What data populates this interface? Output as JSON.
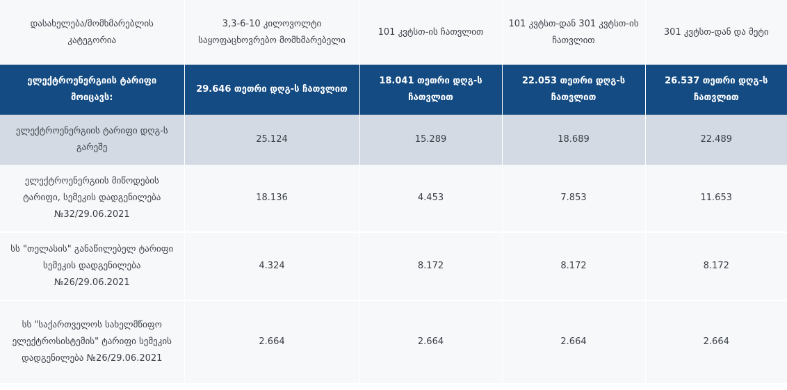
{
  "header": {
    "category_label": "დასახელება/მომხმარებლის კატეგორია",
    "columns": [
      "3,3-6-10 კილოვოლტი საყოფაცხოვრებო მომხმარებელი",
      "101 კვტსთ-ის ჩათვლით",
      "101 კვტსთ-დან 301 კვტსთ-ის ჩათვლით",
      "301 კვტსთ-დან და მეტი"
    ]
  },
  "tariff_row": {
    "label": "ელექტროენერგიის ტარიფი მოიცავს:",
    "values": [
      "29.646 თეთრი დღგ-ს ჩათვლით",
      "18.041 თეთრი დღგ-ს ჩათვლით",
      "22.053 თეთრი დღგ-ს ჩათვლით",
      "26.537 თეთრი დღგ-ს ჩათვლით"
    ]
  },
  "rows": [
    {
      "label": "ელექტროენერგიის ტარიფი დღგ-ს გარეშე",
      "values": [
        "25.124",
        "15.289",
        "18.689",
        "22.489"
      ]
    },
    {
      "label": "ელექტროენერგიის მიწოდების ტარიფი,  სემეკის დადგენილება №32/29.06.2021",
      "values": [
        "18.136",
        "4.453",
        "7.853",
        "11.653"
      ]
    },
    {
      "label": "სს \"თელასის\" განაწილებელ ტარიფი სემეკის დადგენილება №26/29.06.2021",
      "values": [
        "4.324",
        "8.172",
        "8.172",
        "8.172"
      ]
    },
    {
      "label": "სს \"საქართველოს სახელმწიფო ელექტროსისტემის\" ტარიფი სემეკის დადგენილება №26/29.06.2021",
      "values": [
        "2.664",
        "2.664",
        "2.664",
        "2.664"
      ]
    }
  ],
  "colors": {
    "header_band": "#134b82",
    "highlight_row": "#d4dae3",
    "row_background": "#f7f8fa"
  }
}
